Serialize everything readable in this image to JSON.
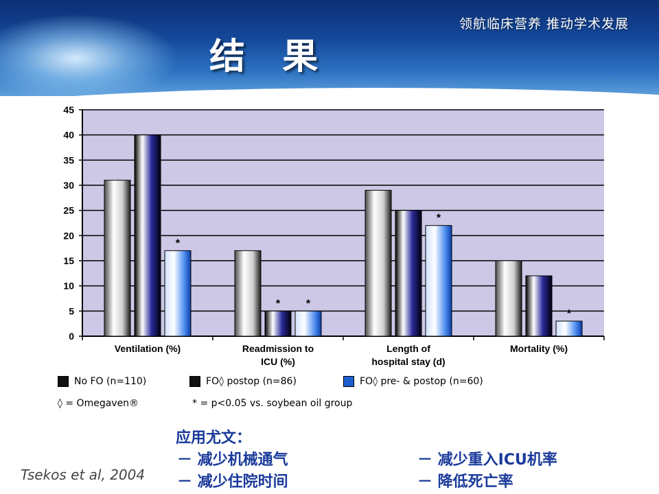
{
  "header": {
    "subtitle": "领航临床营养 推动学术发展",
    "title": "结 果"
  },
  "chart_data": {
    "type": "bar",
    "categories": [
      "Ventilation (%)",
      "Readmission to ICU (%)",
      "Length of hospital stay (d)",
      "Mortality (%)"
    ],
    "category_lines": [
      [
        "Ventilation (%)"
      ],
      [
        "Readmission to",
        "ICU (%)"
      ],
      [
        "Length of",
        "hospital stay (d)"
      ],
      [
        "Mortality (%)"
      ]
    ],
    "series": [
      {
        "name": "No FO (n=110)",
        "values": [
          31,
          17,
          29,
          15
        ],
        "color": "#c8c8c8"
      },
      {
        "name": "FO◊ postop (n=86)",
        "values": [
          40,
          5,
          25,
          12
        ],
        "color": "#1a1a7a"
      },
      {
        "name": "FO◊ pre- & postop (n=60)",
        "values": [
          17,
          5,
          22,
          3
        ],
        "color": "#1e5fd0"
      }
    ],
    "significance": [
      [
        false,
        false,
        true
      ],
      [
        false,
        true,
        true
      ],
      [
        false,
        false,
        true
      ],
      [
        false,
        false,
        true
      ]
    ],
    "sig_marker": "*",
    "ylim": [
      0,
      45
    ],
    "yticks": [
      0,
      5,
      10,
      15,
      20,
      25,
      30,
      35,
      40,
      45
    ],
    "grid": true,
    "plot_bg": "#ccc8e6"
  },
  "legend": {
    "items": [
      "No FO (n=110)",
      "FO◊ postop (n=86)",
      "FO◊ pre- & postop (n=60)"
    ],
    "note1": "◊ = Omegaven®",
    "note2": "* = p<0.05 vs. soybean oil group"
  },
  "application": {
    "label": "应用尤文：",
    "items": [
      "－ 减少机械通气",
      "－ 减少重入ICU机率",
      "－ 减少住院时间",
      "－ 降低死亡率"
    ]
  },
  "source": "Tsekos et al, 2004"
}
